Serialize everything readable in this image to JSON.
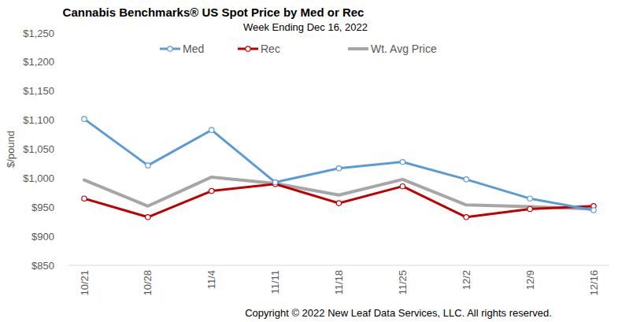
{
  "chart_data": {
    "type": "line",
    "title": "Cannabis Benchmarks® US Spot Price by Med or Rec",
    "subtitle": "Week Ending Dec 16, 2022",
    "y_label": "$/pound",
    "annotations": [
      "Copyright © 2022 New Leaf Data Services, LLC. All rights reserved."
    ],
    "categories": [
      "10/21",
      "10/28",
      "11/4",
      "11/11",
      "11/18",
      "11/25",
      "12/2",
      "12/9",
      "12/16"
    ],
    "series": [
      {
        "name": "Med",
        "color": "#5b9bd5",
        "marker": "circle",
        "line_style": "solid",
        "values": [
          1102,
          1022,
          1083,
          993,
          1017,
          1028,
          998,
          965,
          945
        ]
      },
      {
        "name": "Rec",
        "color": "#c00000",
        "marker": "circle",
        "line_style": "solid",
        "values": [
          965,
          933,
          978,
          990,
          957,
          986,
          933,
          947,
          952
        ]
      },
      {
        "name": "Wt. Avg Price",
        "color": "#a6a6a6",
        "marker": "none",
        "line_style": "solid",
        "values": [
          997,
          952,
          1002,
          991,
          971,
          998,
          954,
          951,
          947
        ]
      }
    ],
    "ylim": [
      850,
      1250
    ],
    "yticks": [
      {
        "value": 850,
        "label": "$850"
      },
      {
        "value": 900,
        "label": "$900"
      },
      {
        "value": 950,
        "label": "$950"
      },
      {
        "value": 1000,
        "label": "$1,000"
      },
      {
        "value": 1050,
        "label": "$1,050"
      },
      {
        "value": 1100,
        "label": "$1,100"
      },
      {
        "value": 1150,
        "label": "$1,150"
      },
      {
        "value": 1200,
        "label": "$1,200"
      },
      {
        "value": 1250,
        "label": "$1,250"
      }
    ],
    "grid": false,
    "legend": "top"
  }
}
